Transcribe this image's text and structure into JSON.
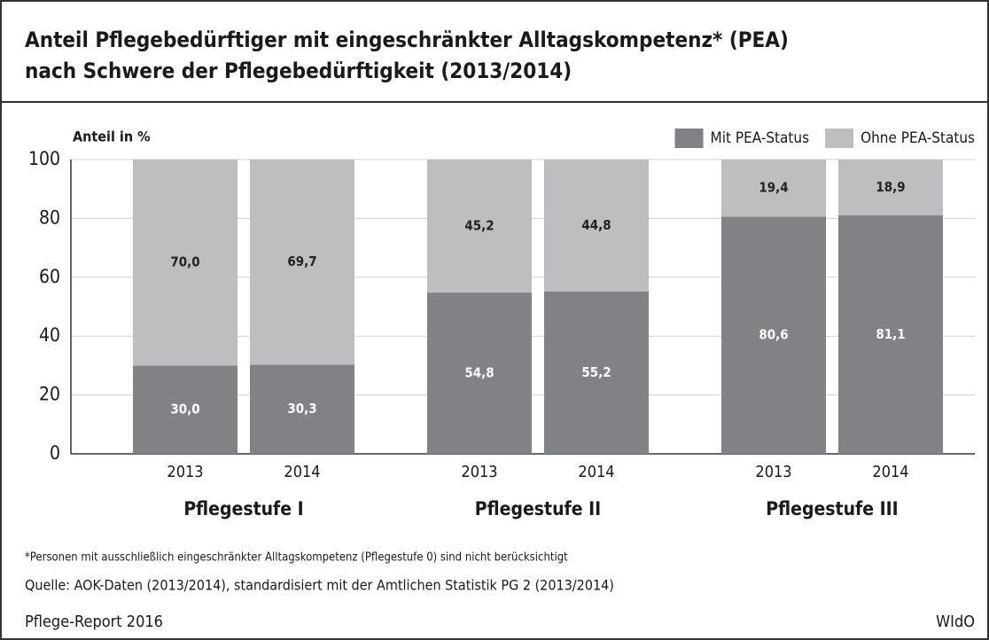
{
  "chart_data": {
    "type": "stacked_bar",
    "title": [
      "Anteil Pflegebedürftiger mit eingeschränkter Alltagskompetenz* (PEA)",
      "nach Schwere der Pflegebedürftigkeit (2013/2014)"
    ],
    "y_label": "Anteil in %",
    "categories": [
      "2013",
      "2014",
      "2013",
      "2014",
      "2013",
      "2014"
    ],
    "groups": [
      "Pflegestufe I",
      "Pflegestufe II",
      "Pflegestufe III"
    ],
    "series": [
      {
        "name": "Mit PEA-Status",
        "color": "#808285",
        "values": [
          30.0,
          30.3,
          54.8,
          55.2,
          80.6,
          81.1
        ],
        "value_labels": [
          "30,0",
          "30,3",
          "54,8",
          "55,2",
          "80,6",
          "81,1"
        ]
      },
      {
        "name": "Ohne PEA-Status",
        "color": "#bcbec0",
        "values": [
          70.0,
          69.7,
          45.2,
          44.8,
          19.4,
          18.9
        ],
        "value_labels": [
          "70,0",
          "69,7",
          "45,2",
          "44,8",
          "19,4",
          "18,9"
        ]
      }
    ],
    "ylim": [
      0,
      100
    ],
    "yticks": [
      0,
      20,
      40,
      60,
      80,
      100
    ],
    "grid": true,
    "legend": "top-right",
    "footnote": "*Personen mit ausschließlich eingeschränkter Alltagskompetenz (Pflegestufe 0) sind nicht berücksichtigt",
    "source": "Quelle: AOK-Daten (2013/2014), standardisiert mit der Amtlichen Statistik PG 2 (2013/2014)",
    "footer_left": "Pflege-Report 2016",
    "footer_right": "WIdO"
  }
}
